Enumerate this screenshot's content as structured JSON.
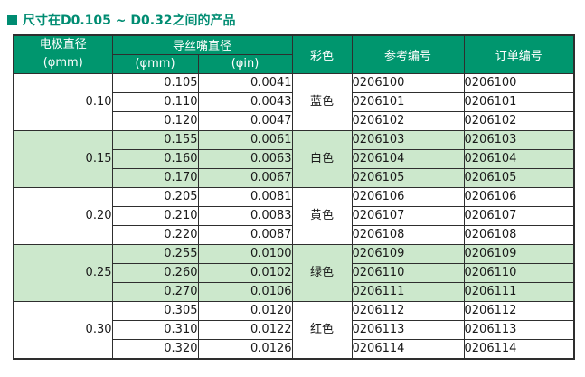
{
  "title": "尺寸在D0.105 ~ D0.32之间的产品",
  "colors": {
    "accent_teal": "#00966E",
    "title_teal": "#008C72",
    "row_shade_green": "#CCE8CC",
    "border": "#2e2e2e",
    "header_text": "#ffffff"
  },
  "table": {
    "header": {
      "electrode_line1": "电极直径",
      "electrode_line2": "(φmm)",
      "guide_title": "导丝嘴直径",
      "unit_mm": "(φmm)",
      "unit_in": "(φin)",
      "color": "彩色",
      "reference": "参考编号",
      "order": "订单编号"
    },
    "groups": [
      {
        "diameter": "0.10",
        "color": "蓝色",
        "shaded": false,
        "rows": [
          {
            "mm": "0.105",
            "inch": "0.0041",
            "ref": "0206100",
            "order": "0206100"
          },
          {
            "mm": "0.110",
            "inch": "0.0043",
            "ref": "0206101",
            "order": "0206101"
          },
          {
            "mm": "0.120",
            "inch": "0.0047",
            "ref": "0206102",
            "order": "0206102"
          }
        ]
      },
      {
        "diameter": "0.15",
        "color": "白色",
        "shaded": true,
        "rows": [
          {
            "mm": "0.155",
            "inch": "0.0061",
            "ref": "0206103",
            "order": "0206103"
          },
          {
            "mm": "0.160",
            "inch": "0.0063",
            "ref": "0206104",
            "order": "0206104"
          },
          {
            "mm": "0.170",
            "inch": "0.0067",
            "ref": "0206105",
            "order": "0206105"
          }
        ]
      },
      {
        "diameter": "0.20",
        "color": "黄色",
        "shaded": false,
        "rows": [
          {
            "mm": "0.205",
            "inch": "0.0081",
            "ref": "0206106",
            "order": "0206106"
          },
          {
            "mm": "0.210",
            "inch": "0.0083",
            "ref": "0206107",
            "order": "0206107"
          },
          {
            "mm": "0.220",
            "inch": "0.0087",
            "ref": "0206108",
            "order": "0206108"
          }
        ]
      },
      {
        "diameter": "0.25",
        "color": "绿色",
        "shaded": true,
        "rows": [
          {
            "mm": "0.255",
            "inch": "0.0100",
            "ref": "0206109",
            "order": "0206109"
          },
          {
            "mm": "0.260",
            "inch": "0.0102",
            "ref": "0206110",
            "order": "0206110"
          },
          {
            "mm": "0.270",
            "inch": "0.0106",
            "ref": "0206111",
            "order": "0206111"
          }
        ]
      },
      {
        "diameter": "0.30",
        "color": "红色",
        "shaded": false,
        "rows": [
          {
            "mm": "0.305",
            "inch": "0.0120",
            "ref": "0206112",
            "order": "0206112"
          },
          {
            "mm": "0.310",
            "inch": "0.0122",
            "ref": "0206113",
            "order": "0206113"
          },
          {
            "mm": "0.320",
            "inch": "0.0126",
            "ref": "0206114",
            "order": "0206114"
          }
        ]
      }
    ]
  }
}
